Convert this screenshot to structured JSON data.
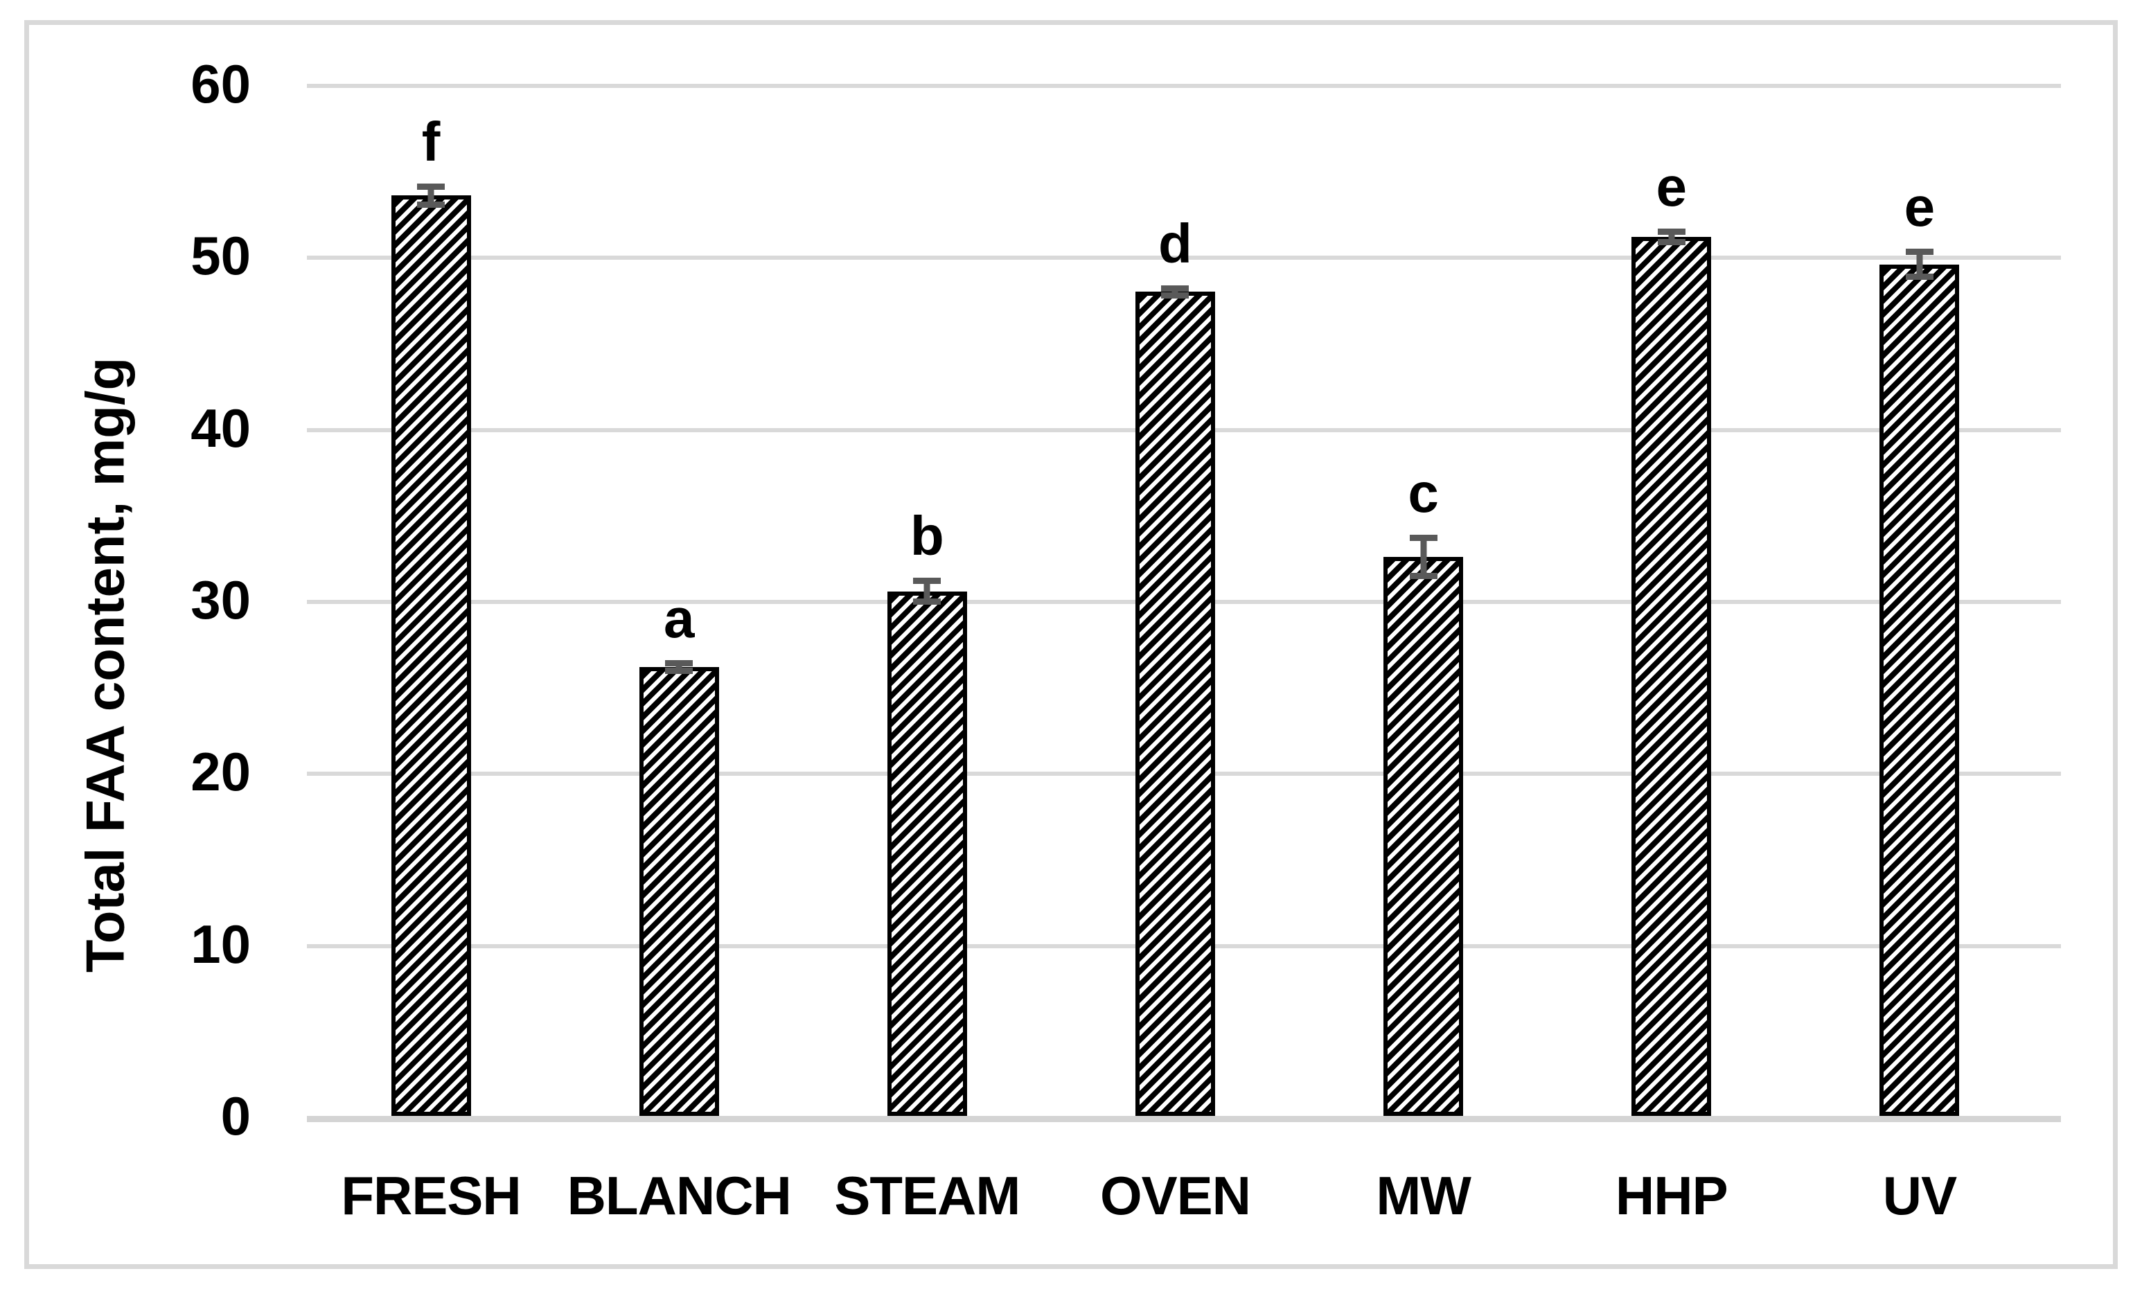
{
  "chart_data": {
    "type": "bar",
    "title": "",
    "xlabel": "",
    "ylabel": "Total FAA content, mg/g",
    "ylim": [
      0,
      60
    ],
    "ytick_interval": 10,
    "yticks": [
      0,
      10,
      20,
      30,
      40,
      50,
      60
    ],
    "grid": true,
    "legend": "none",
    "categories": [
      "FRESH",
      "BLANCH",
      "STEAM",
      "OVEN",
      "MW",
      "HHP",
      "UV"
    ],
    "values": [
      53.5,
      26.1,
      30.5,
      47.9,
      32.5,
      51.1,
      49.5
    ],
    "error_bars": [
      0.7,
      0.4,
      0.8,
      0.4,
      1.3,
      0.5,
      0.9
    ],
    "significance_letters": [
      "f",
      "a",
      "b",
      "d",
      "c",
      "e",
      "e"
    ],
    "bar_style": {
      "fill": "#ffffff",
      "hatch": "diagonal-forward",
      "hatch_color": "#000000",
      "border_color": "#000000"
    },
    "colors": {
      "background": "#ffffff",
      "frame_border": "#d9d9d9",
      "gridline": "#d9d9d9",
      "axis_line": "#d4d4d4",
      "error_bar": "#595959",
      "text": "#000000"
    }
  }
}
